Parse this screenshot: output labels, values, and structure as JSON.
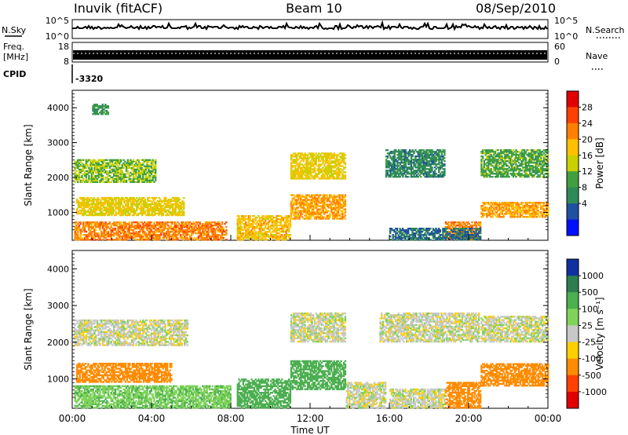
{
  "header": {
    "station": "Inuvik (fitACF)",
    "beam": "Beam 10",
    "date": "08/Sep/2010"
  },
  "top_panels": {
    "nsky_label": "N.Sky",
    "nsky_ticks": [
      "10^5",
      "10^0"
    ],
    "nsearch_label": "N.Search",
    "nsearch_ticks": [
      "10^5",
      "10^0"
    ],
    "freq_label_1": "Freq.",
    "freq_label_2": "[MHz]",
    "freq_ticks": [
      "18",
      "8"
    ],
    "nave_label": "Nave",
    "nave_ticks": [
      "60",
      "0"
    ],
    "cpid_label": "CPID",
    "cpid_value": "-3320"
  },
  "chart_data": [
    {
      "type": "heatmap",
      "panel": "power",
      "xlabel": "Time UT",
      "ylabel": "Slant Range [km]",
      "x_ticks": [
        "00:00",
        "04:00",
        "08:00",
        "12:00",
        "16:00",
        "20:00",
        "00:00"
      ],
      "y_ticks": [
        1000,
        2000,
        3000,
        4000
      ],
      "ylim": [
        200,
        4500
      ],
      "colorbar_label": "Power [dB]",
      "colorbar_ticks": [
        "28",
        "24",
        "20",
        "16",
        "12",
        "8",
        "4"
      ],
      "colorbar_colors": [
        "#e00000",
        "#ff4000",
        "#ff8000",
        "#ffc000",
        "#c8d000",
        "#40a040",
        "#2e8b57",
        "#2050a0",
        "#0010ff"
      ],
      "regions": [
        {
          "t0": 0.1,
          "t1": 4.2,
          "r0": 1850,
          "r1": 2500,
          "v": 14
        },
        {
          "t0": 0.2,
          "t1": 5.6,
          "r0": 900,
          "r1": 1400,
          "v": 18
        },
        {
          "t0": 0.1,
          "t1": 7.8,
          "r0": 200,
          "r1": 700,
          "v": 24
        },
        {
          "t0": 1.0,
          "t1": 1.8,
          "r0": 3800,
          "r1": 4100,
          "v": 10
        },
        {
          "t0": 8.3,
          "t1": 11.0,
          "r0": 200,
          "r1": 900,
          "v": 20
        },
        {
          "t0": 11.0,
          "t1": 13.8,
          "r0": 1950,
          "r1": 2700,
          "v": 18
        },
        {
          "t0": 11.0,
          "t1": 13.8,
          "r0": 800,
          "r1": 1500,
          "v": 22
        },
        {
          "t0": 15.8,
          "t1": 18.8,
          "r0": 2000,
          "r1": 2800,
          "v": 8
        },
        {
          "t0": 18.8,
          "t1": 20.6,
          "r0": 200,
          "r1": 700,
          "v": 24
        },
        {
          "t0": 20.6,
          "t1": 24.0,
          "r0": 850,
          "r1": 1300,
          "v": 22
        },
        {
          "t0": 20.6,
          "t1": 24.0,
          "r0": 2000,
          "r1": 2800,
          "v": 12
        },
        {
          "t0": 16.0,
          "t1": 20.6,
          "r0": 200,
          "r1": 550,
          "v": 6
        }
      ]
    },
    {
      "type": "heatmap",
      "panel": "velocity",
      "xlabel": "Time UT",
      "ylabel": "Slant Range [km]",
      "x_ticks": [
        "00:00",
        "04:00",
        "08:00",
        "12:00",
        "16:00",
        "20:00",
        "00:00"
      ],
      "y_ticks": [
        1000,
        2000,
        3000,
        4000
      ],
      "ylim": [
        200,
        4500
      ],
      "colorbar_label": "Velocity [m s⁻¹]",
      "colorbar_ticks": [
        "1000",
        "500",
        "100",
        "25",
        "-25",
        "-100",
        "-500",
        "-1000"
      ],
      "colorbar_colors": [
        "#1030a0",
        "#2e7d4f",
        "#4caf50",
        "#7fd35a",
        "#c8c8c8",
        "#ffd000",
        "#ff8c00",
        "#ff4000",
        "#e00000"
      ],
      "regions": [
        {
          "t0": 0.1,
          "t1": 5.8,
          "r0": 1900,
          "r1": 2600,
          "v": 0
        },
        {
          "t0": 0.2,
          "t1": 5.0,
          "r0": 900,
          "r1": 1400,
          "v": -200
        },
        {
          "t0": 0.1,
          "t1": 8.0,
          "r0": 200,
          "r1": 800,
          "v": 80
        },
        {
          "t0": 8.3,
          "t1": 11.0,
          "r0": 200,
          "r1": 1000,
          "v": 150
        },
        {
          "t0": 11.0,
          "t1": 13.8,
          "r0": 2000,
          "r1": 2800,
          "v": 0
        },
        {
          "t0": 11.0,
          "t1": 13.8,
          "r0": 700,
          "r1": 1500,
          "v": 200
        },
        {
          "t0": 15.5,
          "t1": 20.5,
          "r0": 2000,
          "r1": 2800,
          "v": 0
        },
        {
          "t0": 18.8,
          "t1": 20.6,
          "r0": 200,
          "r1": 900,
          "v": -300
        },
        {
          "t0": 20.6,
          "t1": 24.0,
          "r0": 800,
          "r1": 1400,
          "v": -300
        },
        {
          "t0": 20.6,
          "t1": 24.0,
          "r0": 2000,
          "r1": 2700,
          "v": 0
        },
        {
          "t0": 16.0,
          "t1": 18.8,
          "r0": 200,
          "r1": 700,
          "v": 0
        },
        {
          "t0": 13.8,
          "t1": 15.8,
          "r0": 200,
          "r1": 900,
          "v": 0
        }
      ]
    }
  ]
}
